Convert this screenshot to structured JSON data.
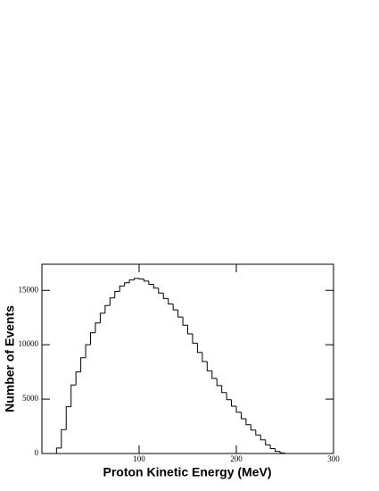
{
  "chart_data": {
    "type": "histogram",
    "x_label": "Proton Kinetic Energy (MeV)",
    "y_label": "Number of Events",
    "bins": [
      0,
      5,
      10,
      15,
      20,
      25,
      30,
      35,
      40,
      45,
      50,
      55,
      60,
      65,
      70,
      75,
      80,
      85,
      90,
      95,
      100,
      105,
      110,
      115,
      120,
      125,
      130,
      135,
      140,
      145,
      150,
      155,
      160,
      165,
      170,
      175,
      180,
      185,
      190,
      195,
      200,
      205,
      210,
      215,
      220,
      225,
      230,
      235,
      240,
      245,
      250,
      255,
      260,
      265,
      270,
      275,
      280,
      285,
      290,
      295,
      300
    ],
    "values": [
      0,
      0,
      0,
      500,
      2200,
      4300,
      6300,
      7500,
      8800,
      10000,
      11100,
      12000,
      12900,
      13600,
      14300,
      14900,
      15400,
      15700,
      15950,
      16100,
      16050,
      15850,
      15550,
      15200,
      14750,
      14250,
      13750,
      13200,
      12550,
      11800,
      11000,
      10150,
      9300,
      8450,
      7600,
      6900,
      6250,
      5600,
      4950,
      4350,
      3800,
      3200,
      2650,
      2150,
      1700,
      1250,
      800,
      450,
      200,
      50,
      0,
      0,
      0,
      0,
      0,
      0,
      0,
      0,
      0,
      0
    ],
    "color": "#000000",
    "xlim": [
      0,
      300
    ],
    "ylim": [
      0,
      17400
    ],
    "xticks": [
      100,
      200,
      300
    ],
    "yticks": [
      0,
      5000,
      10000,
      15000
    ]
  }
}
